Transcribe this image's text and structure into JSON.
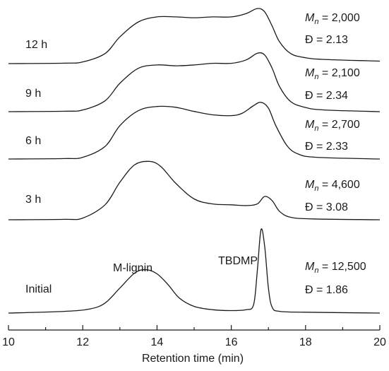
{
  "chart_data": {
    "type": "line",
    "xlabel": "Retention time (min)",
    "ylabel": "",
    "xlim": [
      10,
      20
    ],
    "x_ticks": [
      "10",
      "12",
      "14",
      "16",
      "18",
      "20"
    ],
    "grid": false,
    "series": [
      {
        "name": "Initial",
        "mn_prefix": "M",
        "mn_sub": "n",
        "mn_value": "= 12,500",
        "d_text": "Đ = 1.86",
        "peak_labels": [
          "M-lignin",
          "TBDMP"
        ],
        "points": [
          [
            10,
            0
          ],
          [
            11.5,
            0.02
          ],
          [
            12.2,
            0.05
          ],
          [
            12.6,
            0.12
          ],
          [
            13.0,
            0.3
          ],
          [
            13.4,
            0.48
          ],
          [
            13.7,
            0.52
          ],
          [
            14.0,
            0.47
          ],
          [
            14.3,
            0.34
          ],
          [
            14.6,
            0.18
          ],
          [
            15.0,
            0.08
          ],
          [
            15.5,
            0.04
          ],
          [
            16.0,
            0.03
          ],
          [
            16.4,
            0.04
          ],
          [
            16.6,
            0.1
          ],
          [
            16.7,
            0.5
          ],
          [
            16.8,
            1.0
          ],
          [
            16.9,
            0.8
          ],
          [
            17.0,
            0.3
          ],
          [
            17.1,
            0.07
          ],
          [
            17.3,
            0.02
          ],
          [
            18,
            0.01
          ],
          [
            20,
            0
          ]
        ]
      },
      {
        "name": "3 h",
        "mn_prefix": "M",
        "mn_sub": "n",
        "mn_value": "= 4,600",
        "d_text": "Đ = 3.08",
        "points": [
          [
            10,
            0
          ],
          [
            11.5,
            0.005
          ],
          [
            12.0,
            0.02
          ],
          [
            12.6,
            0.18
          ],
          [
            13.0,
            0.45
          ],
          [
            13.4,
            0.66
          ],
          [
            13.8,
            0.7
          ],
          [
            14.1,
            0.64
          ],
          [
            14.5,
            0.44
          ],
          [
            15.0,
            0.25
          ],
          [
            15.5,
            0.19
          ],
          [
            16.0,
            0.18
          ],
          [
            16.4,
            0.17
          ],
          [
            16.7,
            0.19
          ],
          [
            16.9,
            0.28
          ],
          [
            17.1,
            0.23
          ],
          [
            17.3,
            0.1
          ],
          [
            17.6,
            0.03
          ],
          [
            18.2,
            0.01
          ],
          [
            20,
            0
          ]
        ]
      },
      {
        "name": "6 h",
        "mn_prefix": "M",
        "mn_sub": "n",
        "mn_value": "= 2,700",
        "d_text": "Đ = 2.33",
        "points": [
          [
            10,
            0
          ],
          [
            11.5,
            0.005
          ],
          [
            12.0,
            0.02
          ],
          [
            12.6,
            0.15
          ],
          [
            13.0,
            0.4
          ],
          [
            13.5,
            0.58
          ],
          [
            14.0,
            0.63
          ],
          [
            14.5,
            0.62
          ],
          [
            15.0,
            0.57
          ],
          [
            15.5,
            0.53
          ],
          [
            16.0,
            0.52
          ],
          [
            16.3,
            0.55
          ],
          [
            16.6,
            0.64
          ],
          [
            16.8,
            0.68
          ],
          [
            17.0,
            0.61
          ],
          [
            17.2,
            0.4
          ],
          [
            17.5,
            0.16
          ],
          [
            17.8,
            0.06
          ],
          [
            18.3,
            0.02
          ],
          [
            20,
            0
          ]
        ]
      },
      {
        "name": "9 h",
        "mn_prefix": "M",
        "mn_sub": "n",
        "mn_value": "= 2,100",
        "d_text": "Đ = 2.34",
        "points": [
          [
            10,
            0
          ],
          [
            11.5,
            0.005
          ],
          [
            12.0,
            0.02
          ],
          [
            12.6,
            0.13
          ],
          [
            13.0,
            0.34
          ],
          [
            13.5,
            0.52
          ],
          [
            14.0,
            0.56
          ],
          [
            14.5,
            0.55
          ],
          [
            15.0,
            0.56
          ],
          [
            15.5,
            0.58
          ],
          [
            16.0,
            0.58
          ],
          [
            16.4,
            0.62
          ],
          [
            16.7,
            0.7
          ],
          [
            16.9,
            0.68
          ],
          [
            17.1,
            0.52
          ],
          [
            17.3,
            0.3
          ],
          [
            17.6,
            0.12
          ],
          [
            18.0,
            0.05
          ],
          [
            18.5,
            0.02
          ],
          [
            20,
            0
          ]
        ]
      },
      {
        "name": "12 h",
        "mn_prefix": "M",
        "mn_sub": "n",
        "mn_value": "= 2,000",
        "d_text": "Đ = 2.13",
        "points": [
          [
            10,
            0
          ],
          [
            11.5,
            0.005
          ],
          [
            12.0,
            0.02
          ],
          [
            12.6,
            0.12
          ],
          [
            13.0,
            0.32
          ],
          [
            13.5,
            0.5
          ],
          [
            14.0,
            0.56
          ],
          [
            14.5,
            0.56
          ],
          [
            15.0,
            0.55
          ],
          [
            15.5,
            0.56
          ],
          [
            16.0,
            0.56
          ],
          [
            16.4,
            0.6
          ],
          [
            16.7,
            0.66
          ],
          [
            16.9,
            0.62
          ],
          [
            17.1,
            0.45
          ],
          [
            17.3,
            0.26
          ],
          [
            17.6,
            0.12
          ],
          [
            18.0,
            0.07
          ],
          [
            18.5,
            0.05
          ],
          [
            20,
            0.03
          ]
        ]
      }
    ]
  }
}
